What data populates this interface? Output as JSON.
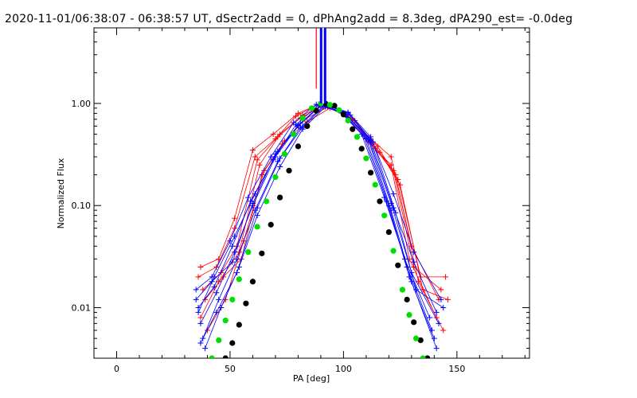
{
  "chart_data": {
    "type": "scatter",
    "title": "2020-11-01/06:38:07 - 06:38:57 UT, dSectr2add = 0, dPhAng2add = 8.3deg, dPA290_est= -0.0deg",
    "xlabel": "PA [deg]",
    "ylabel": "Normalized Flux",
    "xlim": [
      -10,
      182
    ],
    "ylim": [
      0.0032,
      5.5
    ],
    "yscale": "log",
    "grid": false,
    "x_ticks": [
      0,
      50,
      100,
      150
    ],
    "x_tick_labels": [
      "0",
      "50",
      "100",
      "150"
    ],
    "y_ticks": [
      0.01,
      0.1,
      1.0
    ],
    "y_tick_labels": [
      "0.01",
      "0.10",
      "1.00"
    ],
    "colors": {
      "red": "#ff0000",
      "blue": "#0000ff",
      "black": "#000000",
      "green": "#00e000"
    },
    "vertical_lines": [
      {
        "color": "red",
        "x": 88,
        "y_from": 1.4,
        "y_to": 5.5
      },
      {
        "color": "blue",
        "x": 91,
        "y_from": 1.0,
        "y_to": 5.5
      }
    ],
    "series": [
      {
        "color": "red",
        "marker": "plus",
        "style": "line+marker",
        "x": [
          37,
          45,
          52,
          60,
          69,
          80,
          90,
          101,
          112,
          121,
          130,
          142
        ],
        "y": [
          0.025,
          0.03,
          0.075,
          0.35,
          0.5,
          0.8,
          1.0,
          0.78,
          0.45,
          0.3,
          0.04,
          0.012
        ]
      },
      {
        "color": "red",
        "marker": "plus",
        "style": "line+marker",
        "x": [
          36,
          44,
          52,
          61,
          70,
          79,
          89,
          100,
          111,
          121,
          129,
          141
        ],
        "y": [
          0.02,
          0.025,
          0.06,
          0.3,
          0.45,
          0.75,
          0.98,
          0.8,
          0.42,
          0.25,
          0.03,
          0.008
        ]
      },
      {
        "color": "red",
        "marker": "plus",
        "style": "line+marker",
        "x": [
          38,
          46,
          53,
          62,
          71,
          81,
          91,
          102,
          113,
          122,
          131,
          143
        ],
        "y": [
          0.015,
          0.022,
          0.04,
          0.28,
          0.47,
          0.72,
          0.95,
          0.76,
          0.4,
          0.22,
          0.025,
          0.015
        ]
      },
      {
        "color": "red",
        "marker": "plus",
        "style": "line+marker",
        "x": [
          39,
          47,
          55,
          64,
          73,
          83,
          93,
          104,
          115,
          124,
          134,
          145
        ],
        "y": [
          0.012,
          0.02,
          0.03,
          0.2,
          0.4,
          0.7,
          0.92,
          0.7,
          0.38,
          0.18,
          0.02,
          0.02
        ]
      },
      {
        "color": "red",
        "marker": "plus",
        "style": "line+marker",
        "x": [
          37,
          45,
          54,
          63,
          72,
          82,
          92,
          103,
          114,
          123,
          133,
          144
        ],
        "y": [
          0.008,
          0.018,
          0.035,
          0.25,
          0.5,
          0.77,
          0.97,
          0.72,
          0.36,
          0.2,
          0.018,
          0.006
        ]
      },
      {
        "color": "red",
        "marker": "plus",
        "style": "line+marker",
        "x": [
          40,
          48,
          56,
          65,
          74,
          84,
          94,
          105,
          116,
          125,
          135,
          146
        ],
        "y": [
          0.006,
          0.012,
          0.045,
          0.22,
          0.43,
          0.66,
          0.9,
          0.68,
          0.33,
          0.16,
          0.015,
          0.012
        ]
      },
      {
        "color": "blue",
        "marker": "plus",
        "style": "line+marker",
        "x": [
          35,
          42,
          50,
          58,
          68,
          78,
          88,
          98,
          108,
          118,
          127,
          138
        ],
        "y": [
          0.015,
          0.02,
          0.045,
          0.12,
          0.3,
          0.65,
          0.98,
          0.85,
          0.5,
          0.12,
          0.03,
          0.008
        ]
      },
      {
        "color": "blue",
        "marker": "plus",
        "style": "line+marker",
        "x": [
          36,
          43,
          51,
          59,
          69,
          79,
          89,
          99,
          109,
          119,
          128,
          139
        ],
        "y": [
          0.01,
          0.016,
          0.04,
          0.11,
          0.28,
          0.62,
          0.96,
          0.83,
          0.48,
          0.11,
          0.025,
          0.006
        ]
      },
      {
        "color": "blue",
        "marker": "plus",
        "style": "line+marker",
        "x": [
          37,
          44,
          52,
          60,
          70,
          80,
          90,
          100,
          110,
          120,
          129,
          140
        ],
        "y": [
          0.007,
          0.014,
          0.035,
          0.1,
          0.3,
          0.6,
          0.95,
          0.8,
          0.45,
          0.1,
          0.02,
          0.005
        ]
      },
      {
        "color": "blue",
        "marker": "plus",
        "style": "line+marker",
        "x": [
          38,
          45,
          53,
          61,
          71,
          81,
          91,
          101,
          111,
          121,
          130,
          141
        ],
        "y": [
          0.005,
          0.012,
          0.03,
          0.09,
          0.27,
          0.58,
          0.94,
          0.78,
          0.44,
          0.09,
          0.018,
          0.004
        ]
      },
      {
        "color": "blue",
        "marker": "plus",
        "style": "line+marker",
        "x": [
          36,
          43,
          52,
          61,
          71,
          81,
          91,
          102,
          112,
          122,
          131,
          143
        ],
        "y": [
          0.009,
          0.02,
          0.05,
          0.13,
          0.34,
          0.64,
          0.99,
          0.82,
          0.47,
          0.13,
          0.035,
          0.012
        ]
      },
      {
        "color": "blue",
        "marker": "plus",
        "style": "line+marker",
        "x": [
          39,
          46,
          54,
          62,
          72,
          82,
          92,
          103,
          113,
          123,
          132,
          144
        ],
        "y": [
          0.004,
          0.01,
          0.025,
          0.08,
          0.24,
          0.56,
          0.93,
          0.77,
          0.42,
          0.085,
          0.015,
          0.01
        ]
      },
      {
        "color": "blue",
        "marker": "plus",
        "style": "line+marker",
        "x": [
          35,
          42,
          51,
          60,
          70,
          80,
          90,
          101,
          111,
          121,
          130,
          142
        ],
        "y": [
          0.012,
          0.018,
          0.028,
          0.105,
          0.32,
          0.61,
          0.97,
          0.79,
          0.46,
          0.105,
          0.022,
          0.007
        ]
      },
      {
        "color": "blue",
        "marker": "plus",
        "style": "line+marker",
        "x": [
          37,
          44,
          53,
          62,
          72,
          82,
          92,
          102,
          112,
          122,
          131,
          141
        ],
        "y": [
          0.0045,
          0.009,
          0.022,
          0.095,
          0.29,
          0.59,
          0.96,
          0.81,
          0.43,
          0.095,
          0.028,
          0.009
        ]
      },
      {
        "color": "black",
        "marker": "dot",
        "style": "marker",
        "x": [
          48,
          51,
          54,
          57,
          60,
          64,
          68,
          72,
          76,
          80,
          84,
          88,
          92,
          96,
          100,
          104,
          108,
          112,
          116,
          120,
          124,
          128,
          131,
          134,
          137
        ],
        "y": [
          0.0032,
          0.0045,
          0.0068,
          0.011,
          0.018,
          0.034,
          0.065,
          0.12,
          0.22,
          0.38,
          0.6,
          0.85,
          1.0,
          0.95,
          0.78,
          0.56,
          0.36,
          0.21,
          0.11,
          0.055,
          0.026,
          0.012,
          0.0072,
          0.0048,
          0.0032
        ]
      },
      {
        "color": "green",
        "marker": "dot",
        "style": "marker",
        "x": [
          42,
          45,
          48,
          51,
          54,
          58,
          62,
          66,
          70,
          74,
          78,
          82,
          86,
          90,
          94,
          98,
          102,
          106,
          110,
          114,
          118,
          122,
          126,
          129,
          132,
          135
        ],
        "y": [
          0.0032,
          0.0048,
          0.0075,
          0.012,
          0.019,
          0.035,
          0.062,
          0.11,
          0.19,
          0.32,
          0.5,
          0.72,
          0.9,
          1.0,
          0.97,
          0.86,
          0.68,
          0.47,
          0.29,
          0.16,
          0.08,
          0.036,
          0.015,
          0.0085,
          0.005,
          0.0032
        ]
      }
    ]
  }
}
